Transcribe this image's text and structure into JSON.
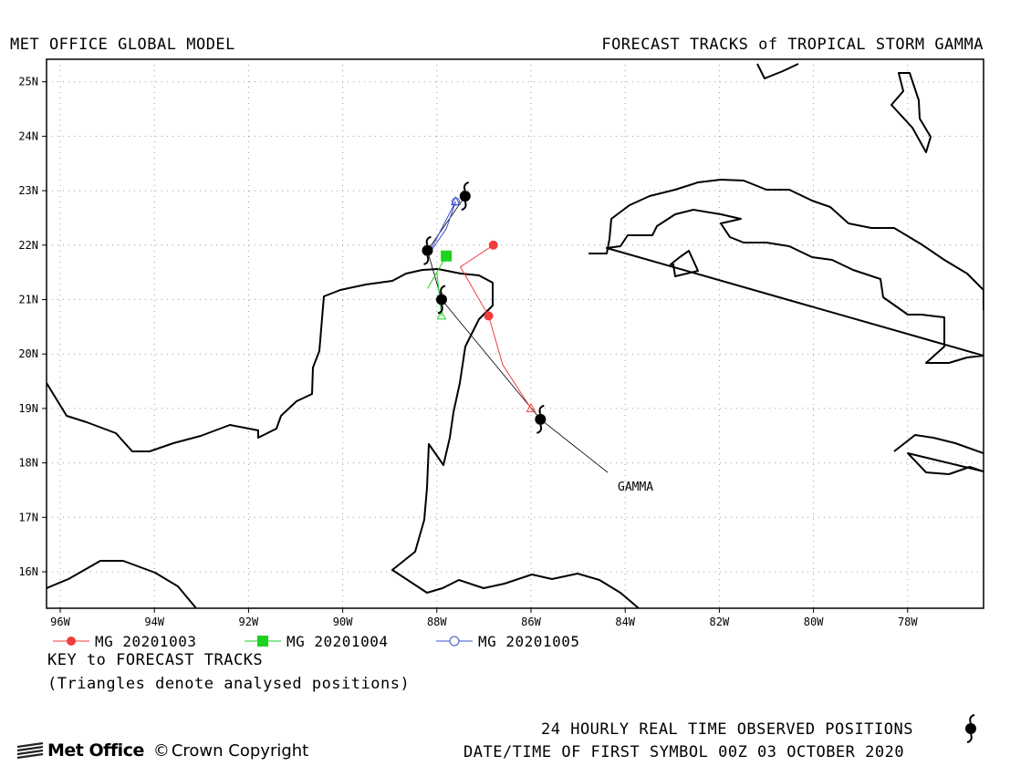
{
  "header": {
    "left_title": "MET OFFICE GLOBAL MODEL",
    "right_title": "FORECAST TRACKS of TROPICAL STORM GAMMA"
  },
  "map": {
    "lon_labels": [
      "96W",
      "94W",
      "92W",
      "90W",
      "88W",
      "86W",
      "84W",
      "82W",
      "80W",
      "78W"
    ],
    "lat_labels": [
      "16N",
      "17N",
      "18N",
      "19N",
      "20N",
      "21N",
      "22N",
      "23N",
      "24N",
      "25N"
    ],
    "storm_label": "GAMMA",
    "gridlines": "dotted"
  },
  "legend": {
    "items": [
      {
        "label": "MG 20201003",
        "color": "#f03c3c",
        "marker": "filled-circle"
      },
      {
        "label": "MG 20201004",
        "color": "#1ed21e",
        "marker": "filled-square"
      },
      {
        "label": "MG 20201005",
        "color": "#3c50c8",
        "marker": "open-circle"
      }
    ],
    "key_title": "KEY to FORECAST TRACKS",
    "key_note": "(Triangles denote analysed positions)"
  },
  "footer": {
    "observed_text": "24 HOURLY REAL TIME OBSERVED POSITIONS",
    "datetime_text": "DATE/TIME OF FIRST SYMBOL 00Z 03 OCTOBER 2020",
    "logo_text": "Met Office",
    "copyright_text": "Crown Copyright",
    "observed_icon": "hurricane-symbol-icon"
  },
  "chart_data": {
    "type": "map-tracks",
    "observed_track": {
      "name": "GAMMA",
      "points": [
        {
          "lon": -85.8,
          "lat": 18.8
        },
        {
          "lon": -87.9,
          "lat": 21.0
        },
        {
          "lon": -88.2,
          "lat": 21.9
        },
        {
          "lon": -87.4,
          "lat": 22.9
        }
      ]
    },
    "forecasts": [
      {
        "name": "MG 20201003",
        "color": "#f03c3c",
        "analysed": {
          "lon": -86.0,
          "lat": 19.0
        },
        "points": [
          {
            "lon": -86.6,
            "lat": 19.8
          },
          {
            "lon": -86.9,
            "lat": 20.7
          },
          {
            "lon": -87.5,
            "lat": 21.6
          },
          {
            "lon": -86.8,
            "lat": 22.0
          }
        ]
      },
      {
        "name": "MG 20201004",
        "color": "#1ed21e",
        "analysed": {
          "lon": -87.9,
          "lat": 20.7
        },
        "points": [
          {
            "lon": -88.0,
            "lat": 21.5
          },
          {
            "lon": -88.2,
            "lat": 21.2
          },
          {
            "lon": -87.8,
            "lat": 21.8
          }
        ]
      },
      {
        "name": "MG 20201005",
        "color": "#3c50c8",
        "analysed": {
          "lon": -87.6,
          "lat": 22.8
        },
        "points": [
          {
            "lon": -88.2,
            "lat": 21.8
          },
          {
            "lon": -87.8,
            "lat": 22.3
          },
          {
            "lon": -87.6,
            "lat": 22.8
          }
        ]
      }
    ]
  }
}
